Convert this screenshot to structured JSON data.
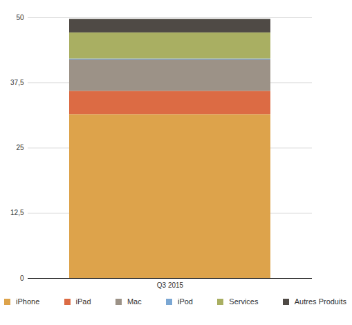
{
  "chart_data": {
    "type": "bar",
    "stacked": true,
    "grid": true,
    "legend": "bottom",
    "categories": [
      "Q3 2015"
    ],
    "series": [
      {
        "name": "iPhone",
        "color": "#DDA34B",
        "values": [
          31.4
        ]
      },
      {
        "name": "iPad",
        "color": "#DC6B44",
        "values": [
          4.5
        ]
      },
      {
        "name": "Mac",
        "color": "#9C9287",
        "values": [
          6.0
        ]
      },
      {
        "name": "iPod",
        "color": "#7BA7D3",
        "values": [
          0.2
        ]
      },
      {
        "name": "Services",
        "color": "#A9AF62",
        "values": [
          5.0
        ]
      },
      {
        "name": "Autres Produits",
        "color": "#4F4A45",
        "values": [
          2.6
        ]
      }
    ],
    "ylim": [
      0,
      50
    ],
    "yticks": [
      0,
      {
        "value": 12.5,
        "label": "12,5"
      },
      25,
      {
        "value": 37.5,
        "label": "37,5"
      },
      50
    ]
  }
}
